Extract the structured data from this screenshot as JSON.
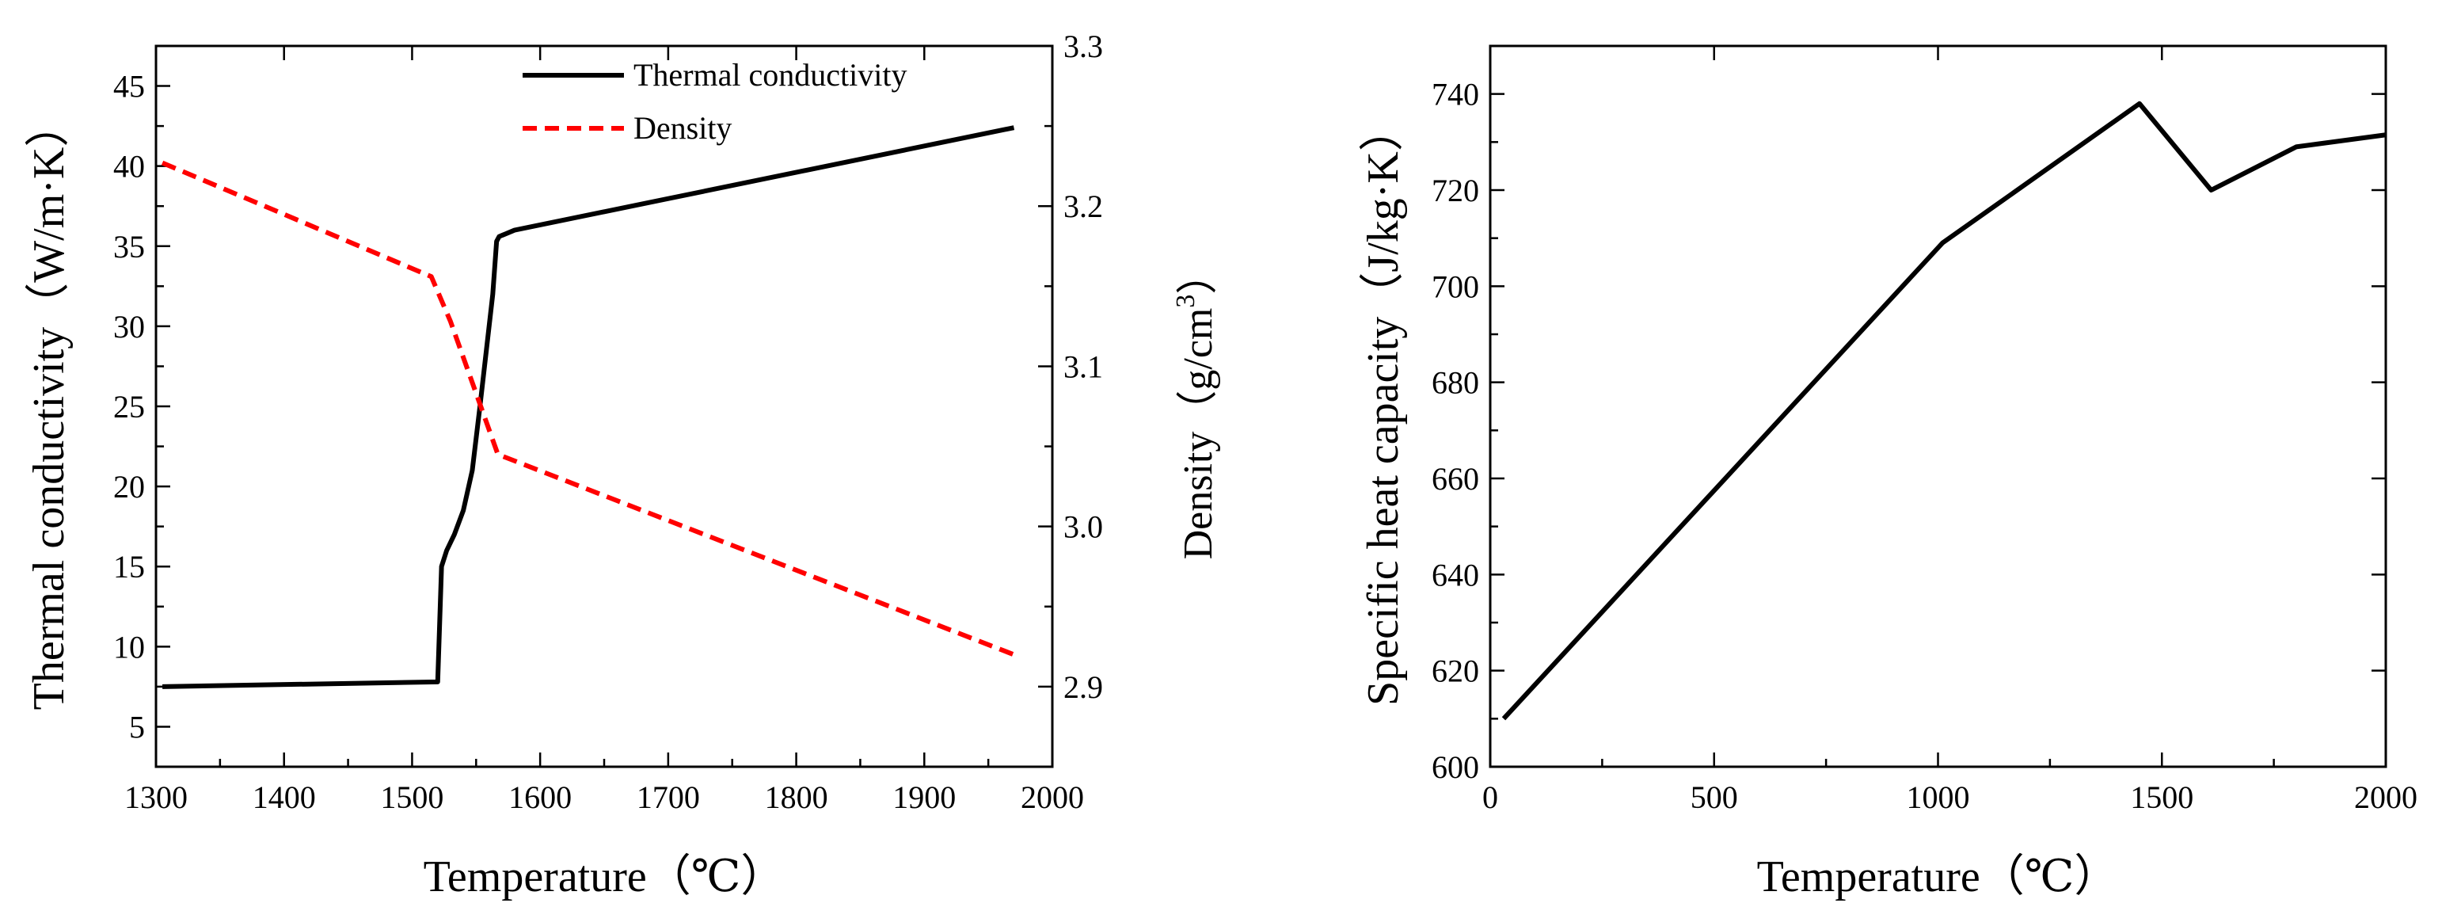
{
  "chart_data": [
    {
      "type": "line",
      "xlabel": "Temperature（℃）",
      "ylabel": "Thermal conductivity（W/m·K）",
      "y2label_prefix": "Density（g/cm",
      "y2label_sup": "3",
      "y2label_suffix": "）",
      "xlim": [
        1300,
        2000
      ],
      "ylim": [
        2.5,
        47.5
      ],
      "y2lim": [
        2.85,
        3.3
      ],
      "xticks": [
        1300,
        1400,
        1500,
        1600,
        1700,
        1800,
        1900,
        2000
      ],
      "yticks": [
        5,
        10,
        15,
        20,
        25,
        30,
        35,
        40,
        45
      ],
      "y2ticks": [
        2.9,
        3.0,
        3.1,
        3.2,
        3.3
      ],
      "y2tick_labels": [
        "2.9",
        "3.0",
        "3.1",
        "3.2",
        "3.3"
      ],
      "legend_position": "top-right",
      "series": [
        {
          "name": "Thermal conductivity",
          "axis": "left",
          "color": "#000000",
          "style": "solid",
          "x": [
            1305,
            1520,
            1523,
            1527,
            1533,
            1540,
            1547,
            1553,
            1558,
            1563,
            1566,
            1568,
            1580,
            1970
          ],
          "y": [
            7.5,
            7.8,
            15.0,
            16.0,
            17.0,
            18.5,
            21.0,
            25.0,
            28.5,
            32.0,
            35.3,
            35.6,
            36.0,
            42.4
          ]
        },
        {
          "name": "Density",
          "axis": "right",
          "color": "#ff0000",
          "style": "dashed",
          "x": [
            1305,
            1515,
            1530,
            1567,
            1970
          ],
          "y": [
            3.227,
            3.156,
            3.128,
            3.045,
            2.92
          ]
        }
      ]
    },
    {
      "type": "line",
      "xlabel": "Temperature（℃）",
      "ylabel": "Specific heat capacity（J/kg·K）",
      "xlim": [
        0,
        2000
      ],
      "ylim": [
        600,
        750
      ],
      "xticks": [
        0,
        500,
        1000,
        1500,
        2000
      ],
      "yticks": [
        600,
        620,
        640,
        660,
        680,
        700,
        720,
        740
      ],
      "series": [
        {
          "name": "Specific heat capacity",
          "color": "#000000",
          "style": "solid",
          "x": [
            30,
            1010,
            1450,
            1610,
            1800,
            2000
          ],
          "y": [
            610,
            709,
            738,
            720,
            729,
            731.5
          ]
        }
      ]
    }
  ]
}
